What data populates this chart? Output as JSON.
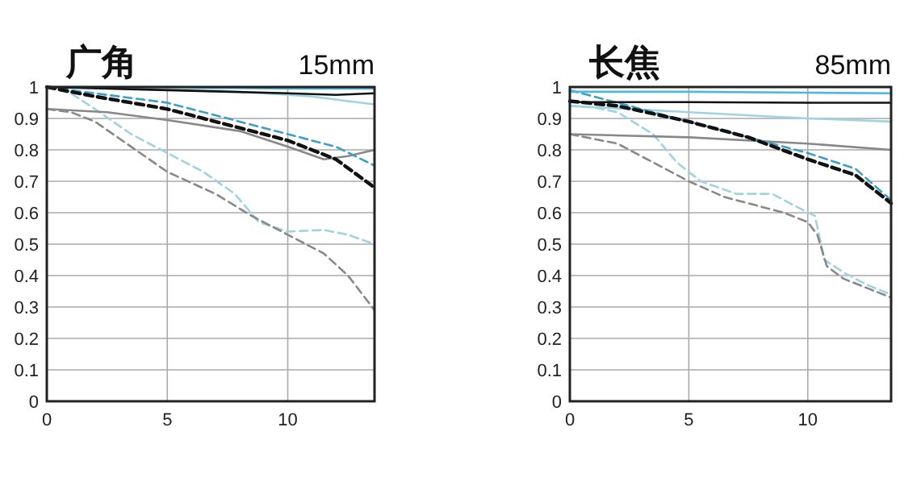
{
  "chart_data": [
    {
      "type": "line",
      "title": "广角",
      "subtitle": "15mm",
      "xlim": [
        0,
        13.6
      ],
      "ylim": [
        0,
        1
      ],
      "xticks": [
        0,
        5,
        10
      ],
      "yticks": [
        0,
        0.1,
        0.2,
        0.3,
        0.4,
        0.5,
        0.6,
        0.7,
        0.8,
        0.9,
        1
      ],
      "grid": true,
      "series": [
        {
          "color": "#9fd3e0",
          "line_style": "solid",
          "x": [
            0,
            3,
            7,
            9,
            11,
            12.5,
            13.6
          ],
          "values": [
            1.0,
            0.995,
            0.99,
            0.98,
            0.97,
            0.955,
            0.945
          ]
        },
        {
          "color": "#9fd3e0",
          "line_style": "dashed",
          "x": [
            0,
            1,
            2,
            3.5,
            5,
            6.5,
            7.8,
            8.8,
            10,
            11.5,
            12.5,
            13.6
          ],
          "values": [
            1.0,
            0.98,
            0.93,
            0.85,
            0.79,
            0.73,
            0.66,
            0.57,
            0.54,
            0.545,
            0.53,
            0.5
          ]
        },
        {
          "color": "#888888",
          "line_style": "solid",
          "x": [
            0,
            2.5,
            5,
            8,
            10,
            11.5,
            12.5,
            13.6
          ],
          "values": [
            0.93,
            0.92,
            0.895,
            0.86,
            0.81,
            0.77,
            0.78,
            0.8
          ]
        },
        {
          "color": "#888888",
          "line_style": "dashed",
          "x": [
            0,
            1,
            2,
            3.5,
            5,
            7,
            8.5,
            10,
            11.5,
            12.5,
            13.6
          ],
          "values": [
            0.93,
            0.92,
            0.89,
            0.81,
            0.73,
            0.66,
            0.59,
            0.53,
            0.47,
            0.4,
            0.29
          ]
        },
        {
          "color": "#3ba0c8",
          "line_style": "dashed",
          "x": [
            0,
            2,
            5,
            8,
            10,
            12,
            13.6
          ],
          "values": [
            1.0,
            0.98,
            0.95,
            0.89,
            0.85,
            0.81,
            0.75
          ]
        },
        {
          "color": "#111111",
          "line_style": "dashed",
          "x": [
            0,
            2,
            5,
            8,
            10,
            12,
            13.6
          ],
          "values": [
            1.0,
            0.97,
            0.93,
            0.87,
            0.83,
            0.77,
            0.68
          ]
        },
        {
          "color": "#4ab8e0",
          "line_style": "solid",
          "x": [
            0,
            5,
            10,
            13.6
          ],
          "values": [
            1.0,
            1.0,
            0.995,
            0.995
          ]
        },
        {
          "color": "#111111",
          "line_style": "solid",
          "x": [
            0,
            5,
            10,
            12,
            13.6
          ],
          "values": [
            1.0,
            0.99,
            0.98,
            0.975,
            0.98
          ]
        }
      ]
    },
    {
      "type": "line",
      "title": "长焦",
      "subtitle": "85mm",
      "xlim": [
        0,
        13.5
      ],
      "ylim": [
        0,
        1
      ],
      "xticks": [
        0,
        5,
        10
      ],
      "yticks": [
        0,
        0.1,
        0.2,
        0.3,
        0.4,
        0.5,
        0.6,
        0.7,
        0.8,
        0.9,
        1
      ],
      "grid": true,
      "series": [
        {
          "color": "#9fd3e0",
          "line_style": "solid",
          "x": [
            0,
            5,
            10,
            13.5
          ],
          "values": [
            0.94,
            0.92,
            0.9,
            0.89
          ]
        },
        {
          "color": "#9fd3e0",
          "line_style": "dashed",
          "x": [
            0,
            1,
            2,
            3.5,
            4.5,
            5.5,
            7,
            8.5,
            9.5,
            10.3,
            10.7,
            11.5,
            12.5,
            13.5
          ],
          "values": [
            0.94,
            0.935,
            0.92,
            0.85,
            0.76,
            0.7,
            0.66,
            0.66,
            0.62,
            0.59,
            0.45,
            0.41,
            0.37,
            0.34
          ]
        },
        {
          "color": "#888888",
          "line_style": "solid",
          "x": [
            0,
            5,
            10,
            13.5
          ],
          "values": [
            0.85,
            0.84,
            0.82,
            0.8
          ]
        },
        {
          "color": "#888888",
          "line_style": "dashed",
          "x": [
            0,
            2,
            3.5,
            5,
            6.5,
            8,
            9,
            10,
            10.4,
            10.8,
            11.5,
            12.5,
            13.5
          ],
          "values": [
            0.85,
            0.82,
            0.76,
            0.7,
            0.65,
            0.62,
            0.6,
            0.57,
            0.53,
            0.43,
            0.39,
            0.36,
            0.33
          ]
        },
        {
          "color": "#3ba0c8",
          "line_style": "dashed",
          "x": [
            0,
            2,
            5,
            7.5,
            10,
            12,
            13.5
          ],
          "values": [
            0.99,
            0.95,
            0.89,
            0.84,
            0.79,
            0.74,
            0.64
          ]
        },
        {
          "color": "#111111",
          "line_style": "dashed",
          "x": [
            0,
            2,
            5,
            7.5,
            10,
            12,
            13.5
          ],
          "values": [
            0.955,
            0.94,
            0.89,
            0.84,
            0.77,
            0.72,
            0.63
          ]
        },
        {
          "color": "#4ab8e0",
          "line_style": "solid",
          "x": [
            0,
            5,
            10,
            13.5
          ],
          "values": [
            0.985,
            0.985,
            0.982,
            0.98
          ]
        },
        {
          "color": "#111111",
          "line_style": "solid",
          "x": [
            0,
            5,
            10,
            13.5
          ],
          "values": [
            0.952,
            0.952,
            0.95,
            0.95
          ]
        }
      ]
    }
  ]
}
